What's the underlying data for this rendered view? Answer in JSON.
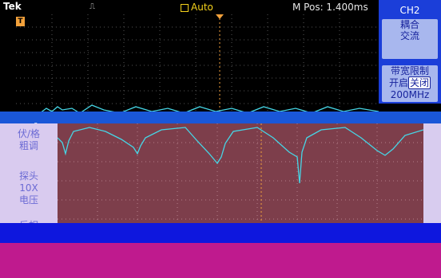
{
  "brand": "Tek",
  "acq_icon": "⎍",
  "mode_label": "Auto",
  "m_pos": "M Pos: 1.400ms",
  "trigger_marker": "T",
  "channel_marker": "2",
  "menu": {
    "title": "CH2",
    "coupling": {
      "line1": "耦合",
      "line2": "交流"
    },
    "bandwidth": {
      "line1": "带宽限制",
      "line2a": "开启",
      "line2b": "关闭",
      "line3": "200MHz"
    }
  },
  "left_menu": {
    "volts_div": {
      "line1": "伏/格",
      "line2": "粗调"
    },
    "probe": {
      "line1": "探头",
      "line2": "10X",
      "line3": "电压"
    },
    "invert": {
      "line1": "反相"
    }
  },
  "colors": {
    "trace": "#46d6e6",
    "menu_blue": "#1b3ed9",
    "grid_bg": "#7d3e4b"
  },
  "icons": {
    "trigger_level": "T-marker-icon",
    "trigger_position": "arrow-down-icon"
  }
}
